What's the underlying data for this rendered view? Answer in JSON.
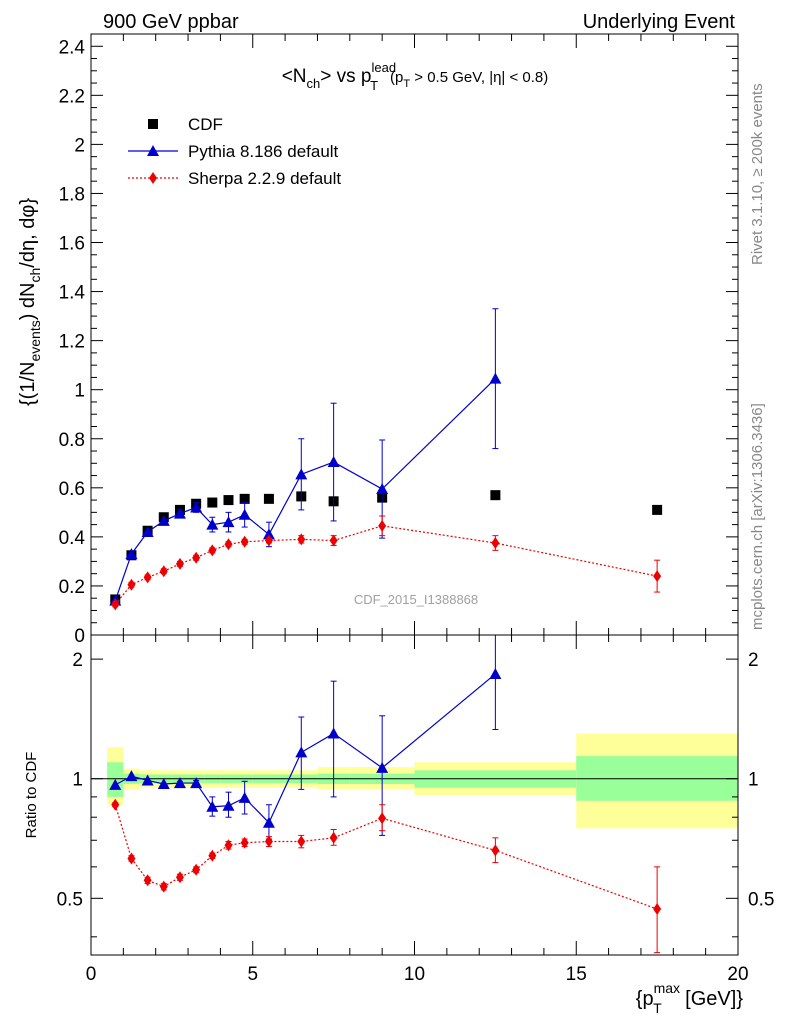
{
  "header": {
    "left": "900 GeV ppbar",
    "right": "Underlying Event"
  },
  "side_labels": {
    "rivet": "Rivet 3.1.10, ≥ 200k events",
    "mcplots": "mcplots.cern.ch [arXiv:1306.3436]"
  },
  "watermark": "CDF_2015_I1388868",
  "chart_data": [
    {
      "panel": "main",
      "type": "scatter",
      "title": "<Nch> vs pT^lead (pT > 0.5 GeV, |η| < 0.8)",
      "ylabel": "{(1/N_events) dN_ch/dη, dφ}",
      "xlim": [
        0,
        20
      ],
      "ylim": [
        0,
        2.45
      ],
      "yticks": [
        "0",
        "0.2",
        "0.4",
        "0.6",
        "0.8",
        "1",
        "1.2",
        "1.4",
        "1.6",
        "1.8",
        "2",
        "2.2",
        "2.4"
      ],
      "legend_position": "top-left",
      "series": [
        {
          "name": "CDF",
          "color": "#000000",
          "marker": "square",
          "x": [
            0.75,
            1.25,
            1.75,
            2.25,
            2.75,
            3.25,
            3.75,
            4.25,
            4.75,
            5.5,
            6.5,
            7.5,
            9.0,
            12.5,
            17.5
          ],
          "y": [
            0.145,
            0.325,
            0.425,
            0.48,
            0.51,
            0.535,
            0.54,
            0.55,
            0.555,
            0.555,
            0.565,
            0.545,
            0.56,
            0.57,
            0.51
          ]
        },
        {
          "name": "Pythia 8.186 default",
          "color": "#0000cc",
          "marker": "triangle",
          "x": [
            0.75,
            1.25,
            1.75,
            2.25,
            2.75,
            3.25,
            3.75,
            4.25,
            4.75,
            5.5,
            6.5,
            7.5,
            9.0,
            12.5
          ],
          "y": [
            0.14,
            0.33,
            0.42,
            0.465,
            0.495,
            0.52,
            0.45,
            0.46,
            0.49,
            0.41,
            0.655,
            0.705,
            0.595,
            1.045
          ],
          "err": [
            0,
            0,
            0,
            0,
            0.015,
            0.02,
            0.03,
            0.04,
            0.05,
            0.05,
            0.145,
            0.24,
            0.2,
            0.285
          ]
        },
        {
          "name": "Sherpa 2.2.9 default",
          "color": "#ee0000",
          "marker": "diamond",
          "x": [
            0.75,
            1.25,
            1.75,
            2.25,
            2.75,
            3.25,
            3.75,
            4.25,
            4.75,
            5.5,
            6.5,
            7.5,
            9.0,
            12.5,
            17.5
          ],
          "y": [
            0.125,
            0.205,
            0.235,
            0.26,
            0.29,
            0.315,
            0.345,
            0.37,
            0.38,
            0.385,
            0.39,
            0.385,
            0.445,
            0.375,
            0.24
          ],
          "err": [
            0.01,
            0.01,
            0.01,
            0.01,
            0.01,
            0.01,
            0.01,
            0.01,
            0.01,
            0.01,
            0.015,
            0.02,
            0.04,
            0.03,
            0.065
          ]
        }
      ]
    },
    {
      "panel": "ratio",
      "type": "scatter",
      "ylabel": "Ratio to CDF",
      "xlabel": "{p_T^max [GeV]}",
      "xlim": [
        0,
        20
      ],
      "ylim": [
        0.36,
        2.3
      ],
      "yticks": [
        "0.5",
        "1",
        "2"
      ],
      "xticks": [
        "0",
        "5",
        "10",
        "15",
        "20"
      ],
      "reference_line": 1,
      "bands": [
        {
          "x": [
            0.5,
            1.0
          ],
          "green": [
            0.9,
            1.1
          ],
          "yellow": [
            0.86,
            1.2
          ]
        },
        {
          "x": [
            1.0,
            1.5
          ],
          "green": [
            0.97,
            1.03
          ],
          "yellow": [
            0.94,
            1.06
          ]
        },
        {
          "x": [
            1.5,
            2.0
          ],
          "green": [
            0.975,
            1.025
          ],
          "yellow": [
            0.95,
            1.05
          ]
        },
        {
          "x": [
            2.0,
            2.5
          ],
          "green": [
            0.975,
            1.025
          ],
          "yellow": [
            0.95,
            1.05
          ]
        },
        {
          "x": [
            2.5,
            3.0
          ],
          "green": [
            0.975,
            1.025
          ],
          "yellow": [
            0.95,
            1.05
          ]
        },
        {
          "x": [
            3.0,
            3.5
          ],
          "green": [
            0.975,
            1.025
          ],
          "yellow": [
            0.95,
            1.05
          ]
        },
        {
          "x": [
            3.5,
            4.0
          ],
          "green": [
            0.975,
            1.025
          ],
          "yellow": [
            0.95,
            1.05
          ]
        },
        {
          "x": [
            4.0,
            4.5
          ],
          "green": [
            0.975,
            1.025
          ],
          "yellow": [
            0.95,
            1.05
          ]
        },
        {
          "x": [
            4.5,
            5.0
          ],
          "green": [
            0.975,
            1.025
          ],
          "yellow": [
            0.95,
            1.05
          ]
        },
        {
          "x": [
            5.0,
            6.0
          ],
          "green": [
            0.975,
            1.025
          ],
          "yellow": [
            0.95,
            1.05
          ]
        },
        {
          "x": [
            6.0,
            7.0
          ],
          "green": [
            0.975,
            1.025
          ],
          "yellow": [
            0.95,
            1.05
          ]
        },
        {
          "x": [
            7.0,
            8.0
          ],
          "green": [
            0.97,
            1.03
          ],
          "yellow": [
            0.94,
            1.07
          ]
        },
        {
          "x": [
            8.0,
            10.0
          ],
          "green": [
            0.97,
            1.03
          ],
          "yellow": [
            0.94,
            1.07
          ]
        },
        {
          "x": [
            10.0,
            15.0
          ],
          "green": [
            0.95,
            1.05
          ],
          "yellow": [
            0.91,
            1.1
          ]
        },
        {
          "x": [
            15.0,
            20.0
          ],
          "green": [
            0.88,
            1.14
          ],
          "yellow": [
            0.75,
            1.3
          ]
        }
      ],
      "series": [
        {
          "name": "Pythia 8.186 default",
          "color": "#0000cc",
          "marker": "triangle",
          "x": [
            0.75,
            1.25,
            1.75,
            2.25,
            2.75,
            3.25,
            3.75,
            4.25,
            4.75,
            5.5,
            6.5,
            7.5,
            9.0,
            12.5
          ],
          "y": [
            0.965,
            1.015,
            0.99,
            0.97,
            0.975,
            0.975,
            0.85,
            0.855,
            0.895,
            0.775,
            1.165,
            1.3,
            1.065,
            1.835
          ],
          "lo": [
            0.965,
            1.015,
            0.99,
            0.97,
            0.965,
            0.96,
            0.805,
            0.8,
            0.815,
            0.705,
            0.94,
            0.9,
            0.72,
            1.33
          ],
          "hi": [
            0.965,
            1.015,
            0.99,
            0.97,
            0.985,
            0.99,
            0.9,
            0.925,
            0.985,
            0.86,
            1.43,
            1.76,
            1.44,
            2.32
          ]
        },
        {
          "name": "Sherpa 2.2.9 default",
          "color": "#ee0000",
          "marker": "diamond",
          "x": [
            0.75,
            1.25,
            1.75,
            2.25,
            2.75,
            3.25,
            3.75,
            4.25,
            4.75,
            5.5,
            6.5,
            7.5,
            9.0,
            12.5,
            17.5
          ],
          "y": [
            0.86,
            0.63,
            0.555,
            0.535,
            0.565,
            0.59,
            0.64,
            0.68,
            0.69,
            0.695,
            0.695,
            0.71,
            0.795,
            0.66,
            0.47
          ],
          "lo": [
            0.85,
            0.62,
            0.545,
            0.525,
            0.555,
            0.58,
            0.63,
            0.665,
            0.675,
            0.675,
            0.67,
            0.68,
            0.74,
            0.615,
            0.365
          ],
          "hi": [
            0.87,
            0.64,
            0.565,
            0.545,
            0.575,
            0.6,
            0.65,
            0.695,
            0.705,
            0.715,
            0.72,
            0.745,
            0.86,
            0.71,
            0.6
          ]
        }
      ]
    }
  ]
}
